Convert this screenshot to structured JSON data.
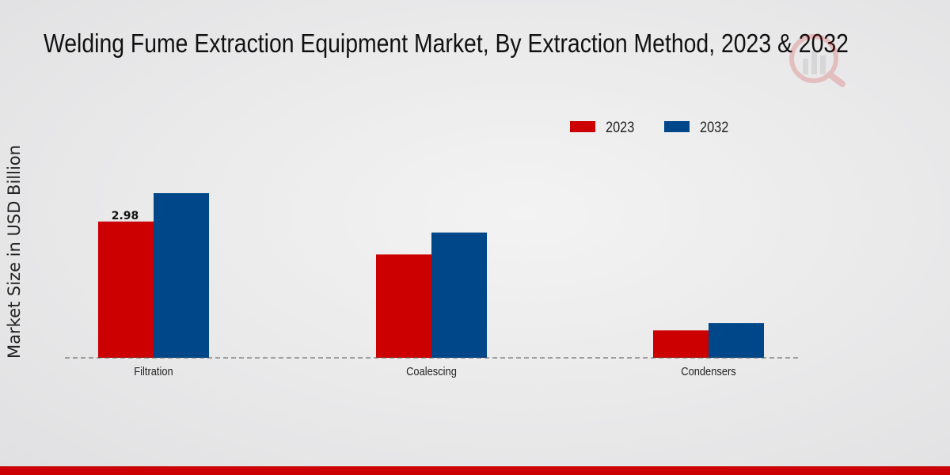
{
  "chart_data": {
    "type": "bar",
    "title": "Welding Fume Extraction Equipment Market, By Extraction Method, 2023 & 2032",
    "ylabel": "Market Size in USD Billion",
    "xlabel": "",
    "categories": [
      "Filtration",
      "Coalescing",
      "Condensers"
    ],
    "series": [
      {
        "name": "2023",
        "color": "#cc0000",
        "values": [
          2.98,
          2.26,
          0.6
        ]
      },
      {
        "name": "2032",
        "color": "#00478a",
        "values": [
          3.6,
          2.74,
          0.76
        ]
      }
    ],
    "data_labels": [
      {
        "series": 0,
        "category": 0,
        "text": "2.98"
      }
    ],
    "ylim": [
      0,
      7.2
    ],
    "grid": false,
    "legend_position": "top-right"
  },
  "colors": {
    "accent_bar": "#cc0000",
    "axis_line": "#555555"
  },
  "icons": {
    "logo": "brand-logo-icon"
  }
}
